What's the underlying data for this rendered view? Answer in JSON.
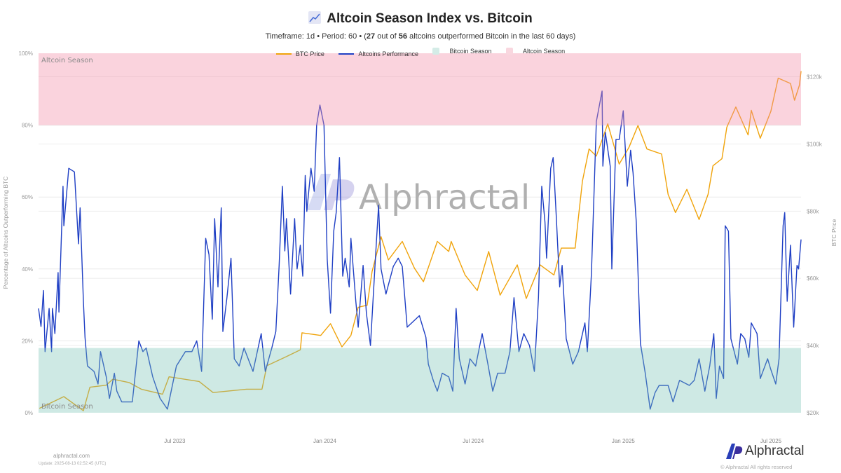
{
  "header": {
    "title": "Altcoin Season Index vs. Bitcoin",
    "title_icon": "chart-increasing-icon",
    "subtitle_pre": "Timeframe: 1d  •  Period: 60  •  (",
    "outperformed_count": "27",
    "subtitle_mid": " out of ",
    "total_count": "56",
    "subtitle_post": " altcoins outperformed Bitcoin in the last 60 days)"
  },
  "footer": {
    "site": "alphractal.com",
    "update": "Update: 2025-08-13 02:52:45 (UTC)",
    "brand": "Alphractal",
    "copyright": "© Alphractal All rights reserved",
    "watermark": "Alphractal"
  },
  "chart_data": {
    "type": "line",
    "title": "Altcoin Season Index vs. Bitcoin",
    "ylabel": "Percentage of Altcoins Outperforming BTC",
    "y2label": "BTC Price",
    "ylim": [
      0,
      100
    ],
    "y2lim": [
      20000,
      127000
    ],
    "xlim": [
      "2023-01-15",
      "2025-08-07"
    ],
    "x_ticks": [
      "Jul 2023",
      "Jan 2024",
      "Jul 2024",
      "Jan 2025",
      "Jul 2025"
    ],
    "x_tick_dates": [
      "2023-07-01",
      "2024-01-01",
      "2024-07-01",
      "2025-01-01",
      "2025-07-01"
    ],
    "y_ticks": [
      "0%",
      "20%",
      "40%",
      "60%",
      "80%",
      "100%"
    ],
    "y_tick_values": [
      0,
      20,
      40,
      60,
      80,
      100
    ],
    "y2_ticks": [
      "$20k",
      "$40k",
      "$60k",
      "$80k",
      "$100k",
      "$120k"
    ],
    "y2_tick_values": [
      20000,
      40000,
      60000,
      80000,
      100000,
      120000
    ],
    "grid": true,
    "legend_placement": "top-center",
    "legend": [
      "BTC Price",
      "Altcoins Performance",
      "Bitcoin Season",
      "Altcoin Season"
    ],
    "bands": [
      {
        "name": "Altcoin Season",
        "range": [
          80,
          100
        ],
        "color": "#f4b6c4"
      },
      {
        "name": "Bitcoin Season",
        "range": [
          0,
          18
        ],
        "color": "#a9d9cf"
      }
    ],
    "series": [
      {
        "name": "BTC Price",
        "axis": "right",
        "color": "#f0a30a",
        "points": [
          [
            "2023-01-16",
            21300
          ],
          [
            "2023-02-15",
            24800
          ],
          [
            "2023-03-11",
            20600
          ],
          [
            "2023-03-19",
            27600
          ],
          [
            "2023-04-08",
            28200
          ],
          [
            "2023-04-16",
            30000
          ],
          [
            "2023-05-06",
            29000
          ],
          [
            "2023-05-21",
            27000
          ],
          [
            "2023-06-16",
            25500
          ],
          [
            "2023-06-24",
            30700
          ],
          [
            "2023-07-31",
            29300
          ],
          [
            "2023-08-17",
            26000
          ],
          [
            "2023-09-27",
            27000
          ],
          [
            "2023-10-16",
            27000
          ],
          [
            "2023-10-22",
            34000
          ],
          [
            "2023-11-14",
            36600
          ],
          [
            "2023-12-02",
            38700
          ],
          [
            "2023-12-04",
            43800
          ],
          [
            "2023-12-27",
            43000
          ],
          [
            "2024-01-08",
            46500
          ],
          [
            "2024-01-22",
            39600
          ],
          [
            "2024-02-02",
            43000
          ],
          [
            "2024-02-11",
            51400
          ],
          [
            "2024-02-22",
            52000
          ],
          [
            "2024-02-28",
            62000
          ],
          [
            "2024-03-10",
            72400
          ],
          [
            "2024-03-19",
            65500
          ],
          [
            "2024-04-05",
            71000
          ],
          [
            "2024-04-20",
            63000
          ],
          [
            "2024-05-01",
            59000
          ],
          [
            "2024-05-18",
            71000
          ],
          [
            "2024-06-01",
            68000
          ],
          [
            "2024-06-04",
            71000
          ],
          [
            "2024-06-21",
            61000
          ],
          [
            "2024-07-06",
            56400
          ],
          [
            "2024-07-20",
            68000
          ],
          [
            "2024-08-03",
            55000
          ],
          [
            "2024-08-24",
            64000
          ],
          [
            "2024-09-04",
            54000
          ],
          [
            "2024-09-21",
            64000
          ],
          [
            "2024-10-08",
            61000
          ],
          [
            "2024-10-17",
            69000
          ],
          [
            "2024-11-03",
            69000
          ],
          [
            "2024-11-06",
            76000
          ],
          [
            "2024-11-12",
            89000
          ],
          [
            "2024-11-20",
            98500
          ],
          [
            "2024-11-29",
            96400
          ],
          [
            "2024-12-13",
            106000
          ],
          [
            "2024-12-27",
            94000
          ],
          [
            "2025-01-08",
            99000
          ],
          [
            "2025-01-19",
            105500
          ],
          [
            "2025-01-30",
            98500
          ],
          [
            "2025-02-17",
            97000
          ],
          [
            "2025-02-25",
            85000
          ],
          [
            "2025-03-06",
            79600
          ],
          [
            "2025-03-20",
            86500
          ],
          [
            "2025-04-04",
            77500
          ],
          [
            "2025-04-15",
            85000
          ],
          [
            "2025-04-21",
            93500
          ],
          [
            "2025-05-02",
            95600
          ],
          [
            "2025-05-08",
            105000
          ],
          [
            "2025-05-19",
            111000
          ],
          [
            "2025-06-03",
            102700
          ],
          [
            "2025-06-07",
            110000
          ],
          [
            "2025-06-18",
            101700
          ],
          [
            "2025-07-01",
            109700
          ],
          [
            "2025-07-10",
            119600
          ],
          [
            "2025-07-25",
            118000
          ],
          [
            "2025-07-30",
            113000
          ],
          [
            "2025-08-05",
            117500
          ],
          [
            "2025-08-07",
            121700
          ]
        ]
      },
      {
        "name": "Altcoins Performance",
        "axis": "left",
        "color": "#1f3fc4",
        "points": [
          [
            "2023-01-15",
            29
          ],
          [
            "2023-01-18",
            24
          ],
          [
            "2023-01-21",
            34
          ],
          [
            "2023-01-23",
            17
          ],
          [
            "2023-01-28",
            29
          ],
          [
            "2023-01-31",
            17
          ],
          [
            "2023-02-01",
            29
          ],
          [
            "2023-02-04",
            22
          ],
          [
            "2023-02-08",
            39
          ],
          [
            "2023-02-09",
            28
          ],
          [
            "2023-02-14",
            63
          ],
          [
            "2023-02-15",
            52
          ],
          [
            "2023-02-21",
            68
          ],
          [
            "2023-02-28",
            67
          ],
          [
            "2023-03-05",
            47
          ],
          [
            "2023-03-07",
            57
          ],
          [
            "2023-03-11",
            31
          ],
          [
            "2023-03-13",
            21
          ],
          [
            "2023-03-16",
            13
          ],
          [
            "2023-03-24",
            11.5
          ],
          [
            "2023-03-29",
            8
          ],
          [
            "2023-04-01",
            17
          ],
          [
            "2023-04-08",
            10
          ],
          [
            "2023-04-12",
            4
          ],
          [
            "2023-04-18",
            11
          ],
          [
            "2023-04-21",
            6
          ],
          [
            "2023-04-27",
            3
          ],
          [
            "2023-05-10",
            3
          ],
          [
            "2023-05-18",
            20
          ],
          [
            "2023-05-23",
            17
          ],
          [
            "2023-05-27",
            18
          ],
          [
            "2023-06-04",
            10
          ],
          [
            "2023-06-13",
            4
          ],
          [
            "2023-06-22",
            1
          ],
          [
            "2023-07-03",
            13
          ],
          [
            "2023-07-14",
            17
          ],
          [
            "2023-07-22",
            17
          ],
          [
            "2023-07-28",
            20
          ],
          [
            "2023-08-03",
            11.5
          ],
          [
            "2023-08-08",
            48.5
          ],
          [
            "2023-08-12",
            44
          ],
          [
            "2023-08-16",
            26
          ],
          [
            "2023-08-19",
            54
          ],
          [
            "2023-08-23",
            35
          ],
          [
            "2023-08-27",
            57
          ],
          [
            "2023-08-29",
            22.6
          ],
          [
            "2023-09-03",
            32
          ],
          [
            "2023-09-08",
            43
          ],
          [
            "2023-09-12",
            15
          ],
          [
            "2023-09-18",
            13
          ],
          [
            "2023-09-24",
            18
          ],
          [
            "2023-10-05",
            11.5
          ],
          [
            "2023-10-15",
            22
          ],
          [
            "2023-10-20",
            11.5
          ],
          [
            "2023-10-28",
            18
          ],
          [
            "2023-11-02",
            22.6
          ],
          [
            "2023-11-06",
            41
          ],
          [
            "2023-11-10",
            63
          ],
          [
            "2023-11-13",
            45
          ],
          [
            "2023-11-15",
            54
          ],
          [
            "2023-11-20",
            33
          ],
          [
            "2023-11-25",
            54
          ],
          [
            "2023-11-28",
            40
          ],
          [
            "2023-12-02",
            46.6
          ],
          [
            "2023-12-05",
            38
          ],
          [
            "2023-12-08",
            66
          ],
          [
            "2023-12-10",
            56
          ],
          [
            "2023-12-15",
            68
          ],
          [
            "2023-12-19",
            61.6
          ],
          [
            "2023-12-22",
            80
          ],
          [
            "2023-12-26",
            85.6
          ],
          [
            "2023-12-31",
            80
          ],
          [
            "2024-01-04",
            42.7
          ],
          [
            "2024-01-08",
            27.7
          ],
          [
            "2024-01-12",
            50.5
          ],
          [
            "2024-01-15",
            55.7
          ],
          [
            "2024-01-19",
            71
          ],
          [
            "2024-01-23",
            38
          ],
          [
            "2024-01-26",
            43
          ],
          [
            "2024-01-31",
            35
          ],
          [
            "2024-02-02",
            48.5
          ],
          [
            "2024-02-08",
            31
          ],
          [
            "2024-02-11",
            23.8
          ],
          [
            "2024-02-17",
            41
          ],
          [
            "2024-02-21",
            27.7
          ],
          [
            "2024-02-26",
            18.7
          ],
          [
            "2024-03-03",
            42.7
          ],
          [
            "2024-03-07",
            57.7
          ],
          [
            "2024-03-10",
            40
          ],
          [
            "2024-03-16",
            33
          ],
          [
            "2024-03-25",
            40.7
          ],
          [
            "2024-03-31",
            43
          ],
          [
            "2024-04-05",
            40.7
          ],
          [
            "2024-04-11",
            23.8
          ],
          [
            "2024-04-26",
            27
          ],
          [
            "2024-05-04",
            21
          ],
          [
            "2024-05-07",
            13.5
          ],
          [
            "2024-05-13",
            9
          ],
          [
            "2024-05-18",
            6
          ],
          [
            "2024-05-24",
            11
          ],
          [
            "2024-06-01",
            10
          ],
          [
            "2024-06-06",
            6
          ],
          [
            "2024-06-10",
            29
          ],
          [
            "2024-06-14",
            15
          ],
          [
            "2024-06-21",
            8
          ],
          [
            "2024-06-27",
            15
          ],
          [
            "2024-07-04",
            13
          ],
          [
            "2024-07-12",
            22
          ],
          [
            "2024-07-19",
            13.5
          ],
          [
            "2024-07-25",
            6
          ],
          [
            "2024-07-31",
            11
          ],
          [
            "2024-08-09",
            11
          ],
          [
            "2024-08-15",
            17
          ],
          [
            "2024-08-20",
            32
          ],
          [
            "2024-08-26",
            17
          ],
          [
            "2024-09-01",
            22
          ],
          [
            "2024-09-08",
            18.7
          ],
          [
            "2024-09-14",
            11.5
          ],
          [
            "2024-09-19",
            32
          ],
          [
            "2024-09-23",
            63
          ],
          [
            "2024-09-27",
            53
          ],
          [
            "2024-09-29",
            43
          ],
          [
            "2024-10-04",
            68
          ],
          [
            "2024-10-07",
            71
          ],
          [
            "2024-10-11",
            54
          ],
          [
            "2024-10-15",
            35
          ],
          [
            "2024-10-18",
            41
          ],
          [
            "2024-10-23",
            20.6
          ],
          [
            "2024-10-31",
            13.5
          ],
          [
            "2024-11-07",
            17
          ],
          [
            "2024-11-15",
            25
          ],
          [
            "2024-11-18",
            17
          ],
          [
            "2024-11-23",
            38.8
          ],
          [
            "2024-11-29",
            81
          ],
          [
            "2024-12-06",
            89.5
          ],
          [
            "2024-12-07",
            68.6
          ],
          [
            "2024-12-10",
            78
          ],
          [
            "2024-12-16",
            68.6
          ],
          [
            "2024-12-18",
            40
          ],
          [
            "2024-12-23",
            76
          ],
          [
            "2024-12-27",
            76
          ],
          [
            "2025-01-01",
            84
          ],
          [
            "2025-01-06",
            63
          ],
          [
            "2025-01-10",
            73
          ],
          [
            "2025-01-13",
            66.7
          ],
          [
            "2025-01-17",
            53
          ],
          [
            "2025-01-22",
            19.3
          ],
          [
            "2025-01-28",
            11
          ],
          [
            "2025-02-03",
            1
          ],
          [
            "2025-02-09",
            5.6
          ],
          [
            "2025-02-14",
            7.6
          ],
          [
            "2025-02-25",
            7.6
          ],
          [
            "2025-03-03",
            3
          ],
          [
            "2025-03-11",
            9
          ],
          [
            "2025-03-23",
            7.6
          ],
          [
            "2025-03-29",
            9
          ],
          [
            "2025-04-04",
            15
          ],
          [
            "2025-04-11",
            6
          ],
          [
            "2025-04-17",
            13
          ],
          [
            "2025-04-22",
            22
          ],
          [
            "2025-04-25",
            4
          ],
          [
            "2025-04-29",
            13
          ],
          [
            "2025-05-04",
            9.5
          ],
          [
            "2025-05-06",
            52
          ],
          [
            "2025-05-10",
            50.5
          ],
          [
            "2025-05-13",
            20.6
          ],
          [
            "2025-05-21",
            13.5
          ],
          [
            "2025-05-25",
            22
          ],
          [
            "2025-05-30",
            20.6
          ],
          [
            "2025-06-04",
            15.4
          ],
          [
            "2025-06-07",
            25
          ],
          [
            "2025-06-14",
            22
          ],
          [
            "2025-06-18",
            9.5
          ],
          [
            "2025-06-27",
            15
          ],
          [
            "2025-07-01",
            12
          ],
          [
            "2025-07-07",
            8
          ],
          [
            "2025-07-11",
            15
          ],
          [
            "2025-07-16",
            52
          ],
          [
            "2025-07-18",
            55.7
          ],
          [
            "2025-07-21",
            31
          ],
          [
            "2025-07-25",
            46.6
          ],
          [
            "2025-07-29",
            23.8
          ],
          [
            "2025-08-02",
            41
          ],
          [
            "2025-08-04",
            40
          ],
          [
            "2025-08-07",
            48.2
          ]
        ]
      }
    ]
  }
}
